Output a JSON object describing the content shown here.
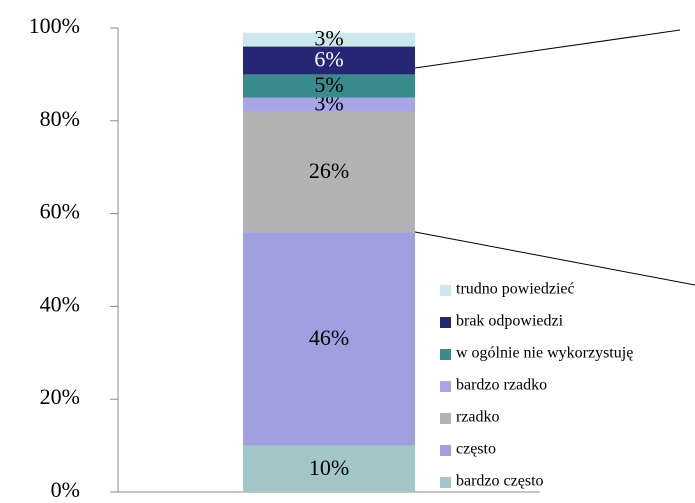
{
  "chart_data": {
    "type": "stacked_bar",
    "categories": [
      null
    ],
    "ylim": [
      0,
      100
    ],
    "yticks": [
      {
        "value": 0,
        "label": "0%"
      },
      {
        "value": 20,
        "label": "20%"
      },
      {
        "value": 40,
        "label": "40%"
      },
      {
        "value": 60,
        "label": "60%"
      },
      {
        "value": 80,
        "label": "80%"
      },
      {
        "value": 100,
        "label": "100%"
      }
    ],
    "series": [
      {
        "name": "bardzo często",
        "color": "#a3c6c8",
        "values": [
          10
        ],
        "value_labels": [
          "10%"
        ]
      },
      {
        "name": "często",
        "color": "#a09fe0",
        "values": [
          46
        ],
        "value_labels": [
          "46%"
        ]
      },
      {
        "name": "rzadko",
        "color": "#b3b3b3",
        "values": [
          26
        ],
        "value_labels": [
          "26%"
        ]
      },
      {
        "name": "bardzo rzadko",
        "color": "#a6a6e6",
        "values": [
          3
        ],
        "value_labels": [
          "3%"
        ]
      },
      {
        "name": "w ogólnie nie wykorzystuję",
        "color": "#3a8b8c",
        "values": [
          5
        ],
        "value_labels": [
          "5%"
        ]
      },
      {
        "name": "brak odpowiedzi",
        "color": "#262676",
        "values": [
          6
        ],
        "value_labels": [
          "6%"
        ]
      },
      {
        "name": "trudno powiedzieć",
        "color": "#cbe9ec",
        "values": [
          3
        ],
        "value_labels": [
          "3%"
        ]
      }
    ],
    "legend": "right"
  }
}
